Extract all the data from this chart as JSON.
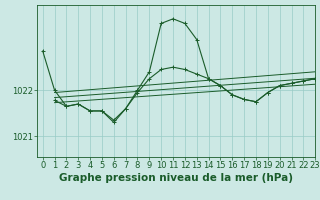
{
  "background_color": "#cce8e4",
  "grid_color": "#99ccc6",
  "line_color": "#1a5c2a",
  "title": "Graphe pression niveau de la mer (hPa)",
  "xlim": [
    -0.5,
    23
  ],
  "ylim": [
    1020.55,
    1023.85
  ],
  "yticks": [
    1021,
    1022
  ],
  "xticks": [
    0,
    1,
    2,
    3,
    4,
    5,
    6,
    7,
    8,
    9,
    10,
    11,
    12,
    13,
    14,
    15,
    16,
    17,
    18,
    19,
    20,
    21,
    22,
    23
  ],
  "series1_x": [
    0,
    1,
    2,
    3,
    4,
    5,
    6,
    7,
    8,
    9,
    10,
    11,
    12,
    13,
    14,
    15,
    16,
    17,
    18,
    19,
    20,
    21,
    22,
    23
  ],
  "series1_y": [
    1022.85,
    1022.0,
    1021.65,
    1021.7,
    1021.55,
    1021.55,
    1021.3,
    1021.6,
    1022.0,
    1022.4,
    1023.45,
    1023.55,
    1023.45,
    1023.1,
    1022.25,
    1022.1,
    1021.9,
    1021.8,
    1021.75,
    1021.95,
    1022.1,
    1022.15,
    1022.2,
    1022.25
  ],
  "series2_x": [
    1,
    2,
    3,
    4,
    5,
    6,
    7,
    8,
    9,
    10,
    11,
    12,
    13,
    14,
    15,
    16,
    17,
    18,
    19,
    20,
    21,
    22,
    23
  ],
  "series2_y": [
    1021.78,
    1021.65,
    1021.7,
    1021.55,
    1021.55,
    1021.35,
    1021.6,
    1021.95,
    1022.25,
    1022.45,
    1022.5,
    1022.45,
    1022.35,
    1022.25,
    1022.1,
    1021.9,
    1021.8,
    1021.75,
    1021.95,
    1022.1,
    1022.15,
    1022.2,
    1022.25
  ],
  "trend1_x": [
    1,
    23
  ],
  "trend1_y": [
    1021.95,
    1022.4
  ],
  "trend2_x": [
    1,
    23
  ],
  "trend2_y": [
    1021.84,
    1022.26
  ],
  "trend3_x": [
    1,
    23
  ],
  "trend3_y": [
    1021.73,
    1022.13
  ],
  "tickfont_size": 6.0,
  "title_fontsize": 7.5
}
